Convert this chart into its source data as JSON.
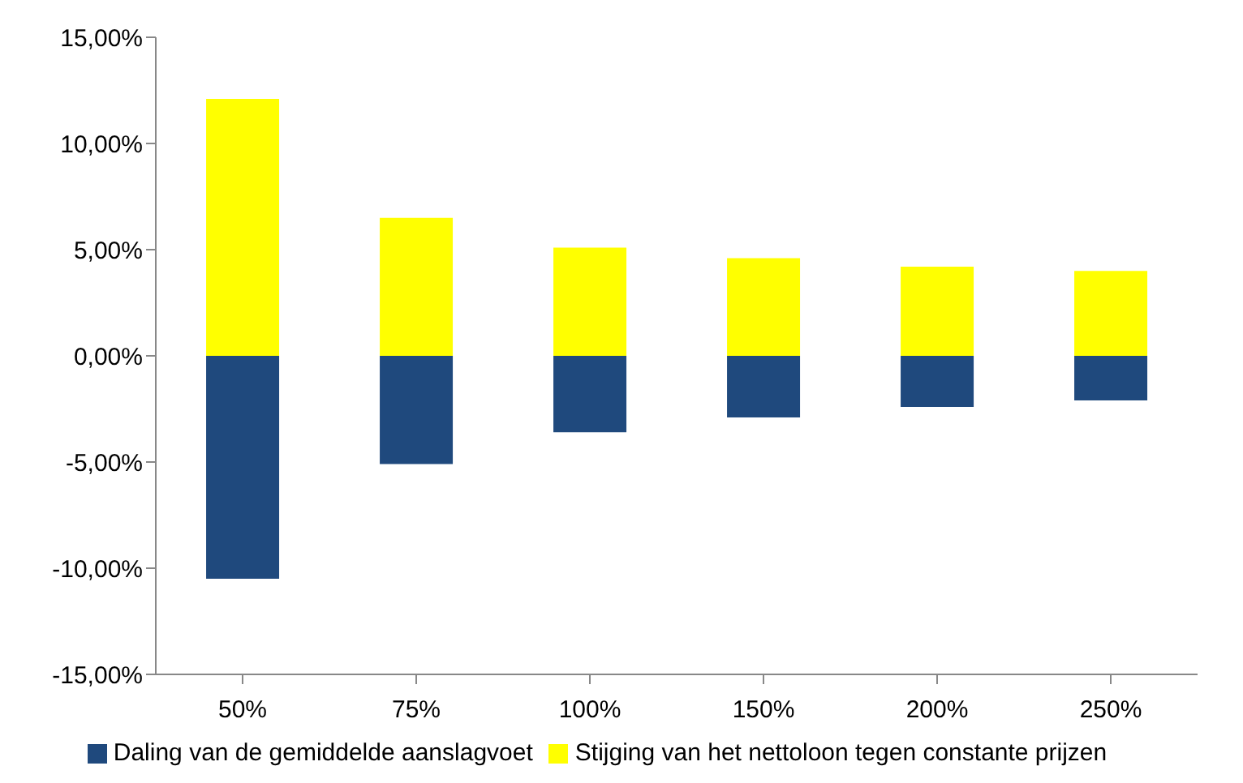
{
  "chart_data": {
    "type": "bar",
    "stacked": true,
    "categories": [
      "50%",
      "75%",
      "100%",
      "150%",
      "200%",
      "250%"
    ],
    "series": [
      {
        "name": "Daling van de gemiddelde aanslagvoet",
        "color": "#1f497d",
        "values": [
          -10.5,
          -5.1,
          -3.6,
          -2.9,
          -2.4,
          -2.1
        ]
      },
      {
        "name": "Stijging van het nettoloon tegen constante prijzen",
        "color": "#ffff00",
        "values": [
          12.1,
          6.5,
          5.1,
          4.6,
          4.2,
          4.0
        ]
      }
    ],
    "ylim": [
      -15,
      15
    ],
    "yticks": [
      {
        "value": -15,
        "label": "-15,00%"
      },
      {
        "value": -10,
        "label": "-10,00%"
      },
      {
        "value": -5,
        "label": "-5,00%"
      },
      {
        "value": 0,
        "label": "0,00%"
      },
      {
        "value": 5,
        "label": "5,00%"
      },
      {
        "value": 10,
        "label": "10,00%"
      },
      {
        "value": 15,
        "label": "15,00%"
      }
    ],
    "grid": false,
    "legend": "bottom"
  }
}
